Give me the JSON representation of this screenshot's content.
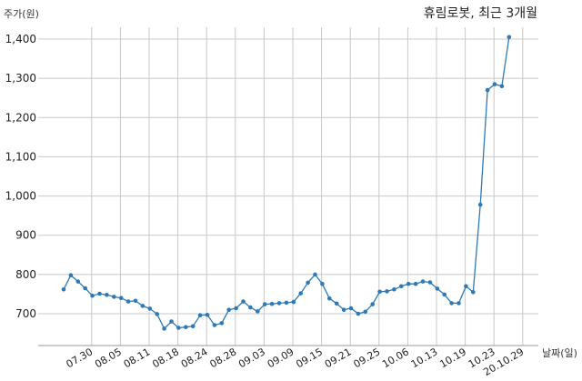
{
  "chart_data": {
    "type": "line",
    "title": "휴림로봇, 최근 3개월",
    "ylabel": "주가(원)",
    "xlabel": "날짜(일)",
    "ylim": [
      620,
      1440
    ],
    "yticks": [
      700,
      800,
      900,
      1000,
      1100,
      1200,
      1300,
      1400
    ],
    "ytick_labels": [
      "700",
      "800",
      "900",
      "1,000",
      "1,100",
      "1,200",
      "1,300",
      "1,400"
    ],
    "grid": true,
    "xticks": [
      {
        "label": "07.30",
        "index": 2
      },
      {
        "label": "08.05",
        "index": 6
      },
      {
        "label": "08.11",
        "index": 10
      },
      {
        "label": "08.18",
        "index": 14
      },
      {
        "label": "08.24",
        "index": 18
      },
      {
        "label": "08.28",
        "index": 22
      },
      {
        "label": "09.03",
        "index": 26
      },
      {
        "label": "09.09",
        "index": 30
      },
      {
        "label": "09.15",
        "index": 34
      },
      {
        "label": "09.21",
        "index": 38
      },
      {
        "label": "09.25",
        "index": 42
      },
      {
        "label": "10.06",
        "index": 46
      },
      {
        "label": "10.13",
        "index": 50
      },
      {
        "label": "10.19",
        "index": 54
      },
      {
        "label": "10.23",
        "index": 58
      },
      {
        "label": "20.10.29",
        "index": 62
      }
    ],
    "series": [
      {
        "color": "#2e7ab6",
        "values": [
          762,
          798,
          782,
          765,
          746,
          751,
          748,
          743,
          740,
          731,
          733,
          720,
          713,
          699,
          662,
          680,
          664,
          666,
          668,
          696,
          697,
          671,
          676,
          710,
          714,
          731,
          716,
          706,
          724,
          725,
          727,
          728,
          730,
          752,
          779,
          800,
          776,
          739,
          726,
          710,
          714,
          700,
          705,
          724,
          756,
          757,
          762,
          770,
          776,
          776,
          782,
          780,
          764,
          749,
          727,
          727,
          770,
          755,
          978,
          1270,
          1285,
          1280,
          1405
        ]
      }
    ]
  }
}
